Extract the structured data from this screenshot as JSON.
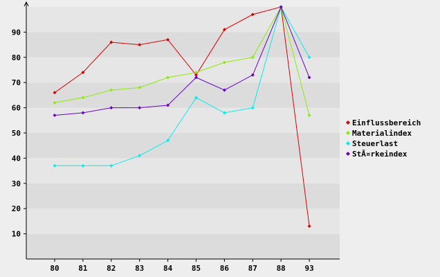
{
  "chart_data": {
    "type": "line",
    "x": [
      "80",
      "81",
      "82",
      "83",
      "84",
      "85",
      "86",
      "87",
      "88",
      "93"
    ],
    "yticks": [
      10,
      20,
      30,
      40,
      50,
      60,
      70,
      80,
      90
    ],
    "ylim": [
      0,
      100
    ],
    "grid": "horizontal bands",
    "legend_position": "right",
    "series": [
      {
        "name": "Einflussbereich",
        "color": "#dd0000",
        "values": [
          66,
          74,
          86,
          85,
          87,
          73,
          91,
          97,
          100,
          13
        ]
      },
      {
        "name": "Materialindex",
        "color": "#88ee00",
        "values": [
          62,
          64,
          67,
          68,
          72,
          74,
          78,
          80,
          100,
          57
        ]
      },
      {
        "name": "Steuerlast",
        "color": "#00eeee",
        "values": [
          37,
          37,
          37,
          41,
          47,
          64,
          58,
          60,
          100,
          80
        ]
      },
      {
        "name": "StÃ¤rkeindex",
        "color": "#6600cc",
        "values": [
          57,
          58,
          60,
          60,
          61,
          72,
          67,
          73,
          100,
          72
        ]
      }
    ]
  }
}
